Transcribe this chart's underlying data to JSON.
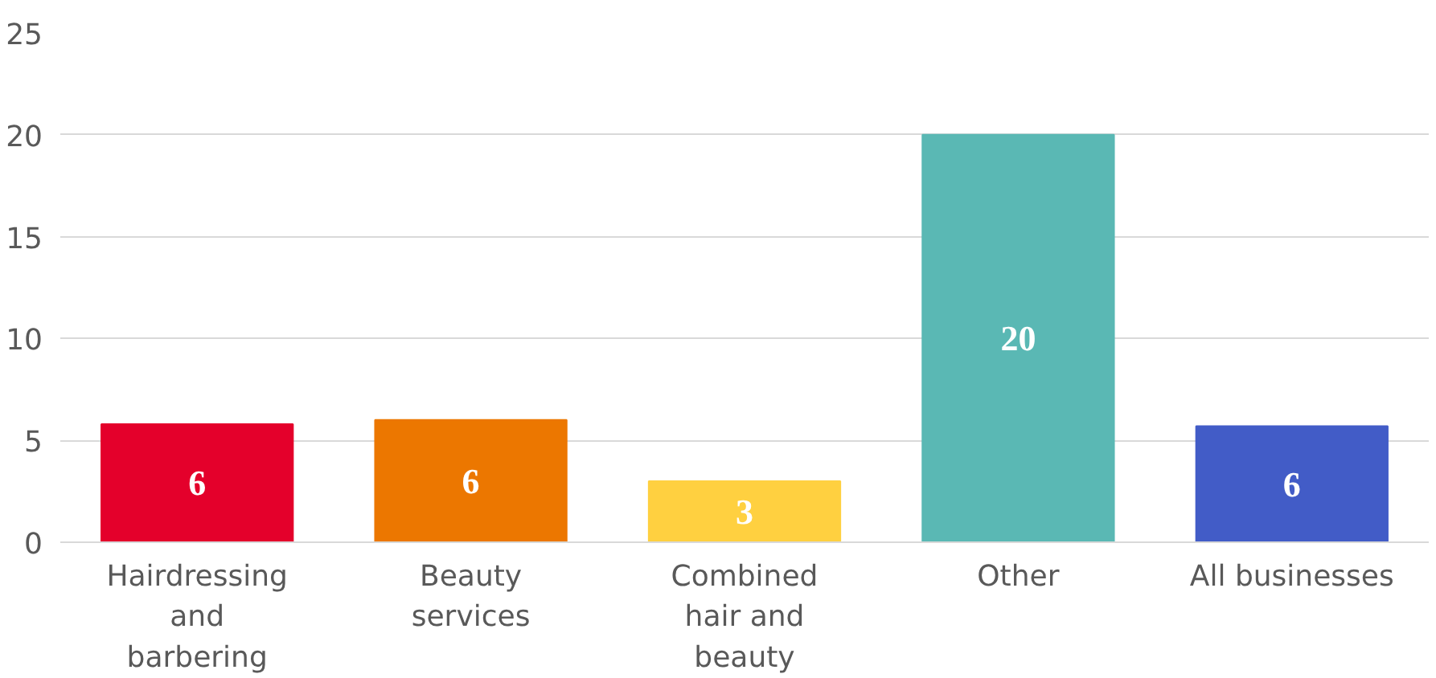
{
  "chart_data": {
    "type": "bar",
    "categories": [
      "Hairdressing\nand\nbarbering",
      "Beauty\nservices",
      "Combined\nhair and\nbeauty",
      "Other",
      "All businesses"
    ],
    "values": [
      5.8,
      6.0,
      3.0,
      20.0,
      5.7
    ],
    "value_labels": [
      "6",
      "6",
      "3",
      "20",
      "6"
    ],
    "colors": [
      "#e4002b",
      "#ec7700",
      "#ffd040",
      "#5ab8b4",
      "#425cc7"
    ],
    "ylim": [
      0,
      25
    ],
    "yticks": [
      0,
      5,
      10,
      15,
      20,
      25
    ],
    "grid": "y"
  }
}
